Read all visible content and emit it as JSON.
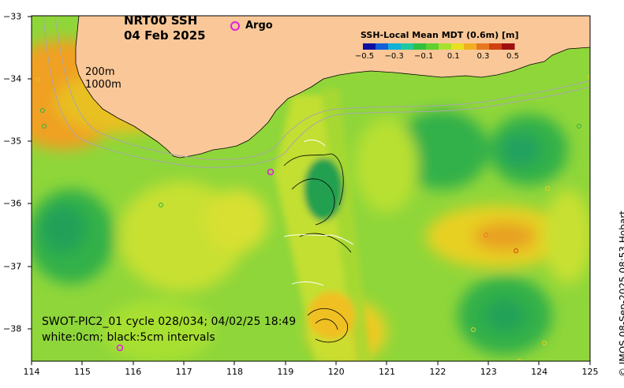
{
  "title": {
    "line1": "NRT00 SSH",
    "line2": "04 Feb 2025"
  },
  "legend": {
    "argo_label": "Argo",
    "argo_color": "#e020e0"
  },
  "depth_contours": {
    "label_200": "200m",
    "label_1000": "1000m"
  },
  "colorbar": {
    "title": "SSH-Local Mean MDT (0.6m) [m]",
    "ticks": [
      "−0.5",
      "−0.3",
      "−0.1",
      "0.1",
      "0.3",
      "0.5"
    ],
    "colors": [
      "#1010a0",
      "#1060d8",
      "#10b0d8",
      "#20c8a0",
      "#30c040",
      "#60d030",
      "#a8e030",
      "#e8e020",
      "#f0b020",
      "#e87820",
      "#d04010",
      "#a01010"
    ]
  },
  "footer": {
    "line1": "SWOT-PIC2_01 cycle 028/034; 04/02/25 18:49",
    "line2": "white:0cm; black:5cm intervals"
  },
  "axes": {
    "x_ticks": [
      "114",
      "115",
      "116",
      "117",
      "118",
      "119",
      "120",
      "121",
      "122",
      "123",
      "124",
      "125"
    ],
    "y_ticks": [
      "−33",
      "−34",
      "−35",
      "−36",
      "−37",
      "−38"
    ],
    "lon_range": [
      114,
      125
    ],
    "lat_range": [
      -38.5,
      -33
    ]
  },
  "credit": "© IMOS 08-Sep-2025 08:53 Hobart",
  "colors": {
    "land": "#fac898",
    "ocean_base": "#8fd63a"
  }
}
